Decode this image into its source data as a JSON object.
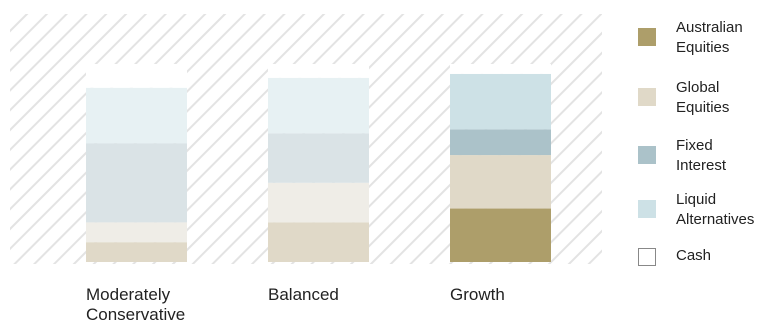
{
  "chart_data": {
    "type": "bar",
    "stacked": true,
    "normalized_100": true,
    "categories": [
      "Moderately Conservative",
      "Balanced",
      "Growth"
    ],
    "category_labels": [
      [
        "Moderately",
        "Conservative"
      ],
      [
        "Balanced"
      ],
      [
        "Growth"
      ]
    ],
    "series": [
      {
        "name": "Australian Equities",
        "color": "#ad9e6a",
        "values": [
          0,
          0,
          27
        ]
      },
      {
        "name": "Global Equities",
        "color": "#e0d9c8",
        "values": [
          10,
          20,
          27
        ]
      },
      {
        "name": "Fixed Interest",
        "color": "#abc2c9",
        "values": [
          0,
          0,
          13
        ]
      },
      {
        "name": "Liquid Alternatives",
        "color": "#cde1e6",
        "values": [
          0,
          0,
          28
        ]
      },
      {
        "name": "Cash",
        "color": "#ffffff",
        "values": [
          0,
          0,
          5
        ]
      }
    ],
    "unlabeled_segments": [
      {
        "color": "#efede7",
        "values": [
          10,
          20,
          0
        ]
      },
      {
        "color": "#dae3e6",
        "values": [
          40,
          25,
          0
        ]
      },
      {
        "color": "#e7f1f3",
        "values": [
          28,
          28,
          0
        ]
      },
      {
        "color": "#ffffff",
        "values": [
          12,
          7,
          0
        ]
      }
    ],
    "segment_order": [
      0,
      1,
      5,
      6,
      2,
      7,
      3,
      8,
      4
    ],
    "background_pattern": "diagonal-hatch",
    "ylim": [
      0,
      100
    ],
    "grid": false,
    "legend_position": "right"
  },
  "legend": [
    {
      "label_lines": [
        "Australian",
        "Equities"
      ],
      "color": "#ad9e6a"
    },
    {
      "label_lines": [
        "Global",
        "Equities"
      ],
      "color": "#e0d9c8"
    },
    {
      "label_lines": [
        "Fixed",
        "Interest"
      ],
      "color": "#abc2c9"
    },
    {
      "label_lines": [
        "Liquid",
        "Alternatives"
      ],
      "color": "#cde1e6"
    },
    {
      "label_lines": [
        "Cash"
      ],
      "color": "#ffffff"
    }
  ]
}
